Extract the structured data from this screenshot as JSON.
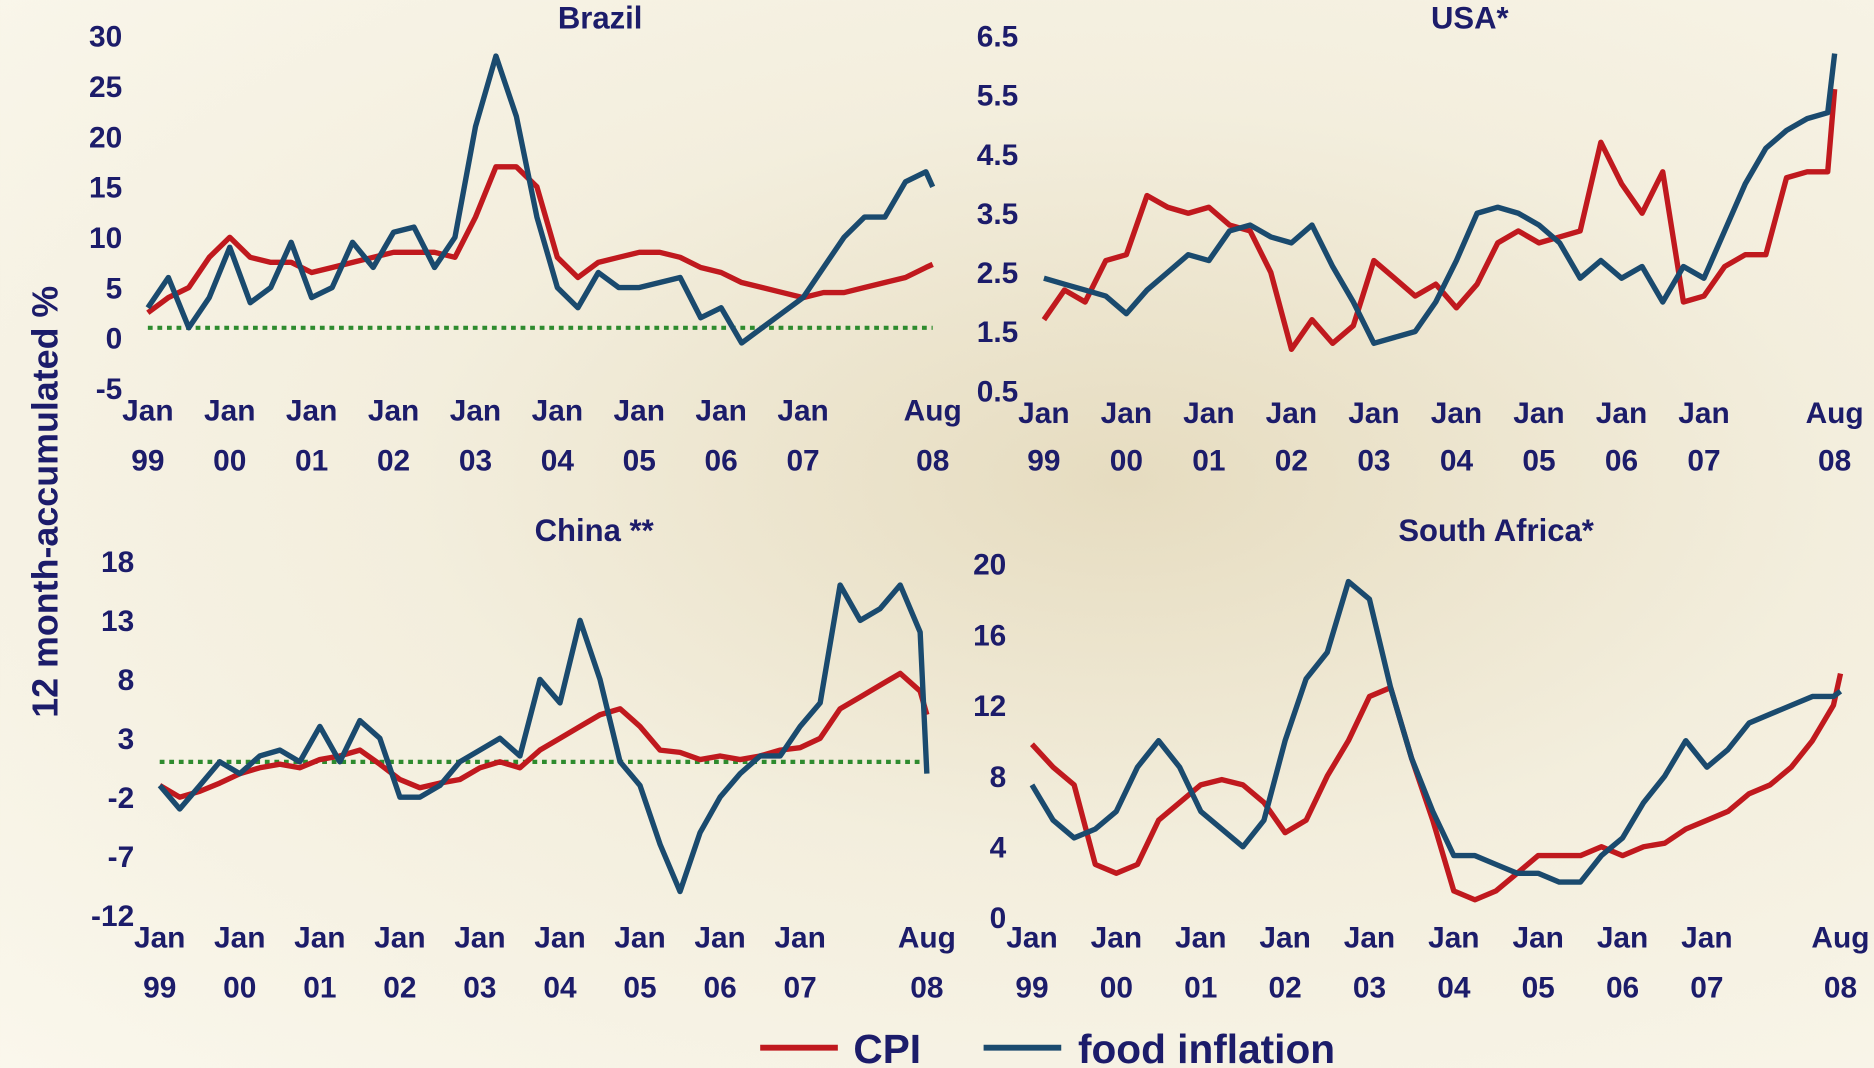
{
  "y_axis_label": "12 month-accumulated %",
  "chart_data": [
    {
      "type": "line",
      "title": "Brazil",
      "x": [
        1999,
        1999.25,
        1999.5,
        1999.75,
        2000,
        2000.25,
        2000.5,
        2000.75,
        2001,
        2001.25,
        2001.5,
        2001.75,
        2002,
        2002.25,
        2002.5,
        2002.75,
        2003,
        2003.25,
        2003.5,
        2003.75,
        2004,
        2004.25,
        2004.5,
        2004.75,
        2005,
        2005.25,
        2005.5,
        2005.75,
        2006,
        2006.25,
        2006.5,
        2006.75,
        2007,
        2007.25,
        2007.5,
        2007.75,
        2008,
        2008.25,
        2008.5,
        2008.583
      ],
      "xlim": [
        1998.95,
        2008.65
      ],
      "xticks": [
        {
          "value": 1999,
          "label": "Jan 99"
        },
        {
          "value": 2000,
          "label": "Jan 00"
        },
        {
          "value": 2001,
          "label": "Jan 01"
        },
        {
          "value": 2002,
          "label": "Jan 02"
        },
        {
          "value": 2003,
          "label": "Jan 03"
        },
        {
          "value": 2004,
          "label": "Jan 04"
        },
        {
          "value": 2005,
          "label": "Jan 05"
        },
        {
          "value": 2006,
          "label": "Jan 06"
        },
        {
          "value": 2007,
          "label": "Jan 07"
        },
        {
          "value": 2008.583,
          "label": "Aug 08"
        }
      ],
      "ylim": [
        -5,
        30
      ],
      "yticks": [
        30,
        25,
        20,
        15,
        10,
        5,
        0,
        -5
      ],
      "reference_line": 1,
      "reference_color": "#2e8b2e",
      "series": [
        {
          "name": "CPI",
          "color": "#c0191e",
          "values": [
            2.5,
            4,
            5,
            8,
            10,
            8,
            7.5,
            7.5,
            6.5,
            7,
            7.5,
            8,
            8.5,
            8.5,
            8.5,
            8,
            12,
            17,
            17,
            15,
            8,
            6,
            7.5,
            8,
            8.5,
            8.5,
            8,
            7,
            6.5,
            5.5,
            5,
            4.5,
            4,
            4.5,
            4.5,
            5,
            5.5,
            6,
            7,
            7.3
          ]
        },
        {
          "name": "food inflation",
          "color": "#1a4a6e",
          "values": [
            3,
            6,
            1,
            4,
            9,
            3.5,
            5,
            9.5,
            4,
            5,
            9.5,
            7,
            10.5,
            11,
            7,
            10,
            21,
            28,
            22,
            12,
            5,
            3,
            6.5,
            5,
            5,
            5.5,
            6,
            2,
            3,
            -0.5,
            1,
            2.5,
            4,
            7,
            10,
            12,
            12,
            15.5,
            16.5,
            15
          ]
        }
      ]
    },
    {
      "type": "line",
      "title": "USA*",
      "x": [
        1999,
        1999.25,
        1999.5,
        1999.75,
        2000,
        2000.25,
        2000.5,
        2000.75,
        2001,
        2001.25,
        2001.5,
        2001.75,
        2002,
        2002.25,
        2002.5,
        2002.75,
        2003,
        2003.25,
        2003.5,
        2003.75,
        2004,
        2004.25,
        2004.5,
        2004.75,
        2005,
        2005.25,
        2005.5,
        2005.75,
        2006,
        2006.25,
        2006.5,
        2006.75,
        2007,
        2007.25,
        2007.5,
        2007.75,
        2008,
        2008.25,
        2008.5,
        2008.583
      ],
      "xlim": [
        1998.95,
        2008.65
      ],
      "xticks": [
        {
          "value": 1999,
          "label": "Jan 99"
        },
        {
          "value": 2000,
          "label": "Jan 00"
        },
        {
          "value": 2001,
          "label": "Jan 01"
        },
        {
          "value": 2002,
          "label": "Jan 02"
        },
        {
          "value": 2003,
          "label": "Jan 03"
        },
        {
          "value": 2004,
          "label": "Jan 04"
        },
        {
          "value": 2005,
          "label": "Jan 05"
        },
        {
          "value": 2006,
          "label": "Jan 06"
        },
        {
          "value": 2007,
          "label": "Jan 07"
        },
        {
          "value": 2008.583,
          "label": "Aug 08"
        }
      ],
      "ylim": [
        0.5,
        6.5
      ],
      "yticks": [
        6.5,
        5.5,
        4.5,
        3.5,
        2.5,
        1.5,
        0.5
      ],
      "series": [
        {
          "name": "CPI",
          "color": "#c0191e",
          "values": [
            1.7,
            2.2,
            2.0,
            2.7,
            2.8,
            3.8,
            3.6,
            3.5,
            3.6,
            3.3,
            3.2,
            2.5,
            1.2,
            1.7,
            1.3,
            1.6,
            2.7,
            2.4,
            2.1,
            2.3,
            1.9,
            2.3,
            3.0,
            3.2,
            3.0,
            3.1,
            3.2,
            4.7,
            4.0,
            3.5,
            4.2,
            2.0,
            2.1,
            2.6,
            2.8,
            2.8,
            4.1,
            4.2,
            4.2,
            5.6
          ]
        },
        {
          "name": "food inflation",
          "color": "#1a4a6e",
          "values": [
            2.4,
            2.3,
            2.2,
            2.1,
            1.8,
            2.2,
            2.5,
            2.8,
            2.7,
            3.2,
            3.3,
            3.1,
            3.0,
            3.3,
            2.6,
            2.0,
            1.3,
            1.4,
            1.5,
            2.0,
            2.7,
            3.5,
            3.6,
            3.5,
            3.3,
            3.0,
            2.4,
            2.7,
            2.4,
            2.6,
            2.0,
            2.6,
            2.4,
            3.2,
            4.0,
            4.6,
            4.9,
            5.1,
            5.2,
            6.2
          ]
        }
      ]
    },
    {
      "type": "line",
      "title": "China **",
      "x": [
        1999,
        1999.25,
        1999.5,
        1999.75,
        2000,
        2000.25,
        2000.5,
        2000.75,
        2001,
        2001.25,
        2001.5,
        2001.75,
        2002,
        2002.25,
        2002.5,
        2002.75,
        2003,
        2003.25,
        2003.5,
        2003.75,
        2004,
        2004.25,
        2004.5,
        2004.75,
        2005,
        2005.25,
        2005.5,
        2005.75,
        2006,
        2006.25,
        2006.5,
        2006.75,
        2007,
        2007.25,
        2007.5,
        2007.75,
        2008,
        2008.25,
        2008.5,
        2008.583
      ],
      "xlim": [
        1998.95,
        2008.65
      ],
      "xticks": [
        {
          "value": 1999,
          "label": "Jan 99"
        },
        {
          "value": 2000,
          "label": "Jan 00"
        },
        {
          "value": 2001,
          "label": "Jan 01"
        },
        {
          "value": 2002,
          "label": "Jan 02"
        },
        {
          "value": 2003,
          "label": "Jan 03"
        },
        {
          "value": 2004,
          "label": "Jan 04"
        },
        {
          "value": 2005,
          "label": "Jan 05"
        },
        {
          "value": 2006,
          "label": "Jan 06"
        },
        {
          "value": 2007,
          "label": "Jan 07"
        },
        {
          "value": 2008.583,
          "label": "Aug 08"
        }
      ],
      "ylim": [
        -12,
        18
      ],
      "yticks": [
        18,
        13,
        8,
        3,
        -2,
        -7,
        -12
      ],
      "reference_line": 1,
      "reference_color": "#2e8b2e",
      "series": [
        {
          "name": "CPI",
          "color": "#c0191e",
          "values": [
            -1,
            -2,
            -1.5,
            -0.8,
            0,
            0.5,
            0.8,
            0.5,
            1.2,
            1.5,
            2,
            0.8,
            -0.5,
            -1.2,
            -0.8,
            -0.5,
            0.5,
            1,
            0.5,
            2,
            3,
            4,
            5,
            5.5,
            4,
            2,
            1.8,
            1.2,
            1.5,
            1.2,
            1.5,
            2,
            2.2,
            3,
            5.5,
            6.5,
            7.5,
            8.5,
            7,
            5
          ]
        },
        {
          "name": "food inflation",
          "color": "#1a4a6e",
          "values": [
            -1,
            -3,
            -1,
            1,
            0,
            1.5,
            2,
            1,
            4,
            1,
            4.5,
            3,
            -2,
            -2,
            -1,
            1,
            2,
            3,
            1.5,
            8,
            6,
            13,
            8,
            1,
            -1,
            -6,
            -10,
            -5,
            -2,
            0,
            1.5,
            1.5,
            4,
            6,
            16,
            13,
            14,
            16,
            12,
            0
          ]
        }
      ]
    },
    {
      "type": "line",
      "title": "South Africa*",
      "x": [
        1999,
        1999.25,
        1999.5,
        1999.75,
        2000,
        2000.25,
        2000.5,
        2000.75,
        2001,
        2001.25,
        2001.5,
        2001.75,
        2002,
        2002.25,
        2002.5,
        2002.75,
        2003,
        2003.25,
        2003.5,
        2003.75,
        2004,
        2004.25,
        2004.5,
        2004.75,
        2005,
        2005.25,
        2005.5,
        2005.75,
        2006,
        2006.25,
        2006.5,
        2006.75,
        2007,
        2007.25,
        2007.5,
        2007.75,
        2008,
        2008.25,
        2008.5,
        2008.583
      ],
      "xlim": [
        1998.95,
        2008.65
      ],
      "xticks": [
        {
          "value": 1999,
          "label": "Jan 99"
        },
        {
          "value": 2000,
          "label": "Jan 00"
        },
        {
          "value": 2001,
          "label": "Jan 01"
        },
        {
          "value": 2002,
          "label": "Jan 02"
        },
        {
          "value": 2003,
          "label": "Jan 03"
        },
        {
          "value": 2004,
          "label": "Jan 04"
        },
        {
          "value": 2005,
          "label": "Jan 05"
        },
        {
          "value": 2006,
          "label": "Jan 06"
        },
        {
          "value": 2007,
          "label": "Jan 07"
        },
        {
          "value": 2008.583,
          "label": "Aug 08"
        }
      ],
      "ylim": [
        0,
        20
      ],
      "yticks": [
        20,
        16,
        12,
        8,
        4,
        0
      ],
      "series": [
        {
          "name": "CPI",
          "color": "#c0191e",
          "values": [
            9.8,
            8.5,
            7.5,
            3,
            2.5,
            3,
            5.5,
            6.5,
            7.5,
            7.8,
            7.5,
            6.5,
            4.8,
            5.5,
            8,
            10,
            12.5,
            13,
            9,
            5.5,
            1.5,
            1,
            1.5,
            2.5,
            3.5,
            3.5,
            3.5,
            4,
            3.5,
            4,
            4.2,
            5,
            5.5,
            6,
            7,
            7.5,
            8.5,
            10,
            12,
            13.8
          ]
        },
        {
          "name": "food inflation",
          "color": "#1a4a6e",
          "values": [
            7.5,
            5.5,
            4.5,
            5,
            6,
            8.5,
            10,
            8.5,
            6,
            5,
            4,
            5.5,
            10,
            13.5,
            15,
            19,
            18,
            13,
            9,
            6,
            3.5,
            3.5,
            3,
            2.5,
            2.5,
            2,
            2,
            3.5,
            4.5,
            6.5,
            8,
            10,
            8.5,
            9.5,
            11,
            11.5,
            12,
            12.5,
            12.5,
            12.8
          ]
        }
      ]
    }
  ]
}
